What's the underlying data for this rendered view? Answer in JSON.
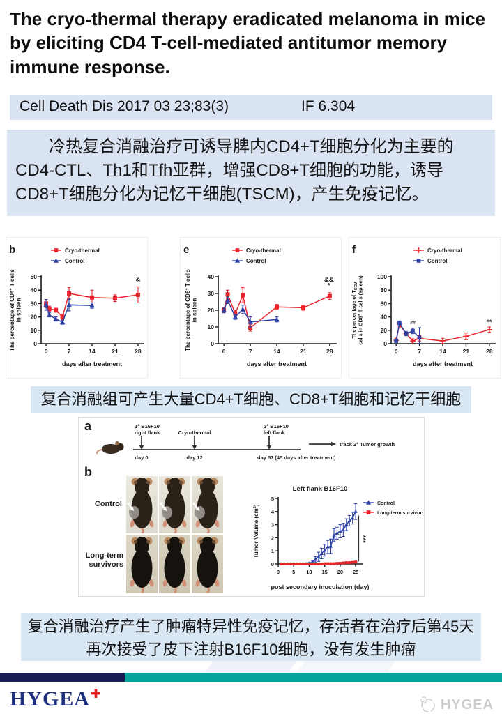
{
  "header": {
    "title": "The cryo-thermal therapy eradicated melanoma in mice by eliciting CD4 T-cell-mediated antitumor memory immune response.",
    "citation": "Cell Death Dis 2017 03 23;83(3)",
    "impact_factor": "IF 6.304"
  },
  "summary": {
    "text": "冷热复合消融治疗可诱导脾内CD4+T细胞分化为主要的CD4-CTL、Th1和Tfh亚群，增强CD8+T细胞的功能，诱导CD8+T细胞分化为记忆干细胞(TSCM)，产生免疫记忆。"
  },
  "captions": {
    "charts_caption": "复合消融组可产生大量CD4+T细胞、CD8+T细胞和记忆干细胞",
    "memory_caption_line1": "复合消融治疗产生了肿瘤特异性免疫记忆，存活者在治疗后第45天",
    "memory_caption_line2": "再次接受了皮下注射B16F10细胞，没有发生肿瘤"
  },
  "figure": {
    "panel_a_letter": "a",
    "panel_b_letter": "b",
    "timeline": {
      "inoculation1_line1": "1° B16F10",
      "inoculation1_line2": "right flank",
      "treatment": "Cryo-thermal",
      "inoculation2_line1": "2° B16F10",
      "inoculation2_line2": "left flank",
      "day0": "day 0",
      "day12": "day 12",
      "day57": "day 57",
      "day57_note": "(45 days after treatment)",
      "track": "track 2° Tumor growth"
    },
    "photo_rows": [
      {
        "label": "Control"
      },
      {
        "label": "Long-term survivors"
      }
    ]
  },
  "chart_data": [
    {
      "id": "cd4-spleen",
      "type": "line",
      "panel_letter": "b",
      "xlabel": "days after treatment",
      "ylabel_lines": [
        [
          {
            "t": "The percentage of CD4"
          },
          {
            "t": "+",
            "sup": true
          },
          {
            "t": " T cells"
          }
        ],
        [
          {
            "t": "in spleen"
          }
        ]
      ],
      "xlim": [
        -1.5,
        29.5
      ],
      "ylim": [
        0,
        50
      ],
      "xticks": [
        0,
        7,
        14,
        21,
        28
      ],
      "yticks": [
        0,
        10,
        20,
        30,
        40,
        50
      ],
      "series": [
        {
          "name": "Cryo-thermal",
          "color": "#e8252c",
          "marker": "square",
          "x": [
            0,
            1,
            3,
            5,
            7,
            14,
            21,
            28
          ],
          "y": [
            30,
            26,
            25,
            20,
            37.5,
            34.5,
            34,
            36.5
          ],
          "err": [
            3,
            2,
            1.5,
            2,
            4.5,
            5.5,
            2.5,
            6
          ]
        },
        {
          "name": "Control",
          "color": "#2f42a5",
          "marker": "triangle",
          "x": [
            0,
            1,
            3,
            5,
            7,
            14
          ],
          "y": [
            29,
            21.5,
            18.5,
            16,
            29,
            28.5
          ],
          "err": [
            4,
            1.5,
            1.5,
            1.5,
            4.5,
            2
          ]
        }
      ],
      "annotations": [
        {
          "text": "&",
          "x": 28,
          "y": 46.5
        }
      ]
    },
    {
      "id": "cd8-spleen",
      "type": "line",
      "panel_letter": "e",
      "xlabel": "days after treatment",
      "ylabel_lines": [
        [
          {
            "t": "The percentage of CD8"
          },
          {
            "t": "+",
            "sup": true
          },
          {
            "t": " T cells"
          }
        ],
        [
          {
            "t": "in spleen"
          }
        ]
      ],
      "xlim": [
        -1.5,
        29.5
      ],
      "ylim": [
        0,
        40
      ],
      "xticks": [
        0,
        7,
        14,
        21,
        28
      ],
      "yticks": [
        0,
        10,
        20,
        30,
        40
      ],
      "series": [
        {
          "name": "Cryo-thermal",
          "color": "#e8252c",
          "marker": "square",
          "x": [
            0,
            1,
            3,
            5,
            7,
            14,
            21,
            28
          ],
          "y": [
            20,
            29.5,
            18,
            29,
            9.5,
            22,
            21.5,
            28.5
          ],
          "err": [
            1.5,
            2.5,
            2,
            4.5,
            2,
            1.5,
            1.5,
            2
          ]
        },
        {
          "name": "Control",
          "color": "#2f42a5",
          "marker": "triangle",
          "x": [
            0,
            1,
            3,
            5,
            7,
            14
          ],
          "y": [
            20,
            26,
            16,
            20.5,
            13,
            14.5
          ],
          "err": [
            1.5,
            2,
            1.5,
            2.5,
            3,
            1.5
          ]
        }
      ],
      "annotations": [
        {
          "text": "&&",
          "x": 27.8,
          "y": 37
        },
        {
          "text": "*",
          "x": 27.8,
          "y": 33.5
        }
      ]
    },
    {
      "id": "tscm-cd8-spleen",
      "type": "line",
      "panel_letter": "f",
      "xlabel": "days after treatment",
      "ylabel_lines": [
        [
          {
            "t": "The percentage of T"
          },
          {
            "t": "SCM",
            "sub": true
          }
        ],
        [
          {
            "t": "cells in CD8"
          },
          {
            "t": "+",
            "sup": true
          },
          {
            "t": " T cells (spleen)"
          }
        ]
      ],
      "xlim": [
        -1.5,
        29.5
      ],
      "ylim": [
        0,
        100
      ],
      "xticks": [
        0,
        7,
        14,
        21,
        28
      ],
      "yticks": [
        0,
        20,
        40,
        60,
        80,
        100
      ],
      "series": [
        {
          "name": "Cryo-thermal",
          "color": "#e8252c",
          "marker": "plus",
          "x": [
            0,
            1,
            3,
            5,
            7,
            14,
            21,
            28
          ],
          "y": [
            5,
            29,
            15,
            4,
            8,
            4,
            11,
            21
          ],
          "err": [
            3,
            4,
            3,
            3,
            4,
            4,
            5,
            4
          ]
        },
        {
          "name": "Control",
          "color": "#2f42a5",
          "marker": "square",
          "x": [
            0,
            1,
            3,
            5,
            7
          ],
          "y": [
            4,
            31,
            15,
            19,
            9
          ],
          "err": [
            2,
            3,
            3,
            4,
            15
          ]
        }
      ],
      "annotations": [
        {
          "text": "##",
          "x": 5,
          "y": 29,
          "size": 7
        },
        {
          "text": "**",
          "x": 28,
          "y": 29
        }
      ]
    },
    {
      "id": "tumor-growth",
      "type": "line",
      "title": "Left flank B16F10",
      "xlabel": "post secondary inoculation (day)",
      "ylabel_lines": [
        [
          {
            "t": "Tumor Volume (cm"
          },
          {
            "t": "3",
            "sup": true
          },
          {
            "t": ")"
          }
        ]
      ],
      "xlim": [
        0,
        27
      ],
      "ylim": [
        0,
        5
      ],
      "xticks": [
        0,
        5,
        10,
        15,
        20,
        25
      ],
      "yticks": [
        0,
        1,
        2,
        3,
        4,
        5
      ],
      "series": [
        {
          "name": "Control",
          "color": "#2f42a5",
          "marker": "triangle",
          "x": [
            1,
            2,
            3,
            4,
            5,
            6,
            7,
            8,
            9,
            10,
            11,
            12,
            13,
            14,
            15,
            16,
            17,
            18,
            19,
            20,
            21,
            22,
            23,
            24,
            25
          ],
          "y": [
            0,
            0,
            0,
            0,
            0,
            0,
            0,
            0,
            0.02,
            0.05,
            0.15,
            0.35,
            0.55,
            0.8,
            1.05,
            1.3,
            1.35,
            2.2,
            2.35,
            2.5,
            2.6,
            3.0,
            3.3,
            3.5,
            4.0
          ],
          "err": [
            0.02,
            0.02,
            0.02,
            0.02,
            0.02,
            0.02,
            0.02,
            0.02,
            0.03,
            0.05,
            0.12,
            0.2,
            0.35,
            0.4,
            0.45,
            0.5,
            0.55,
            0.5,
            0.45,
            0.5,
            0.5,
            0.45,
            0.4,
            0.45,
            0.6
          ]
        },
        {
          "name": "Long-term survivors",
          "color": "#e8252c",
          "marker": "square",
          "x": [
            1,
            2,
            3,
            4,
            5,
            6,
            7,
            8,
            9,
            10,
            11,
            12,
            13,
            14,
            15,
            16,
            17,
            18,
            19,
            20,
            21,
            22,
            23,
            24,
            25
          ],
          "y": [
            0,
            0,
            0,
            0,
            0,
            0,
            0,
            0,
            0,
            0,
            0,
            0,
            0,
            0,
            0.02,
            0.02,
            0.02,
            0.02,
            0.05,
            0.05,
            0.08,
            0.1,
            0.1,
            0.12,
            0.15
          ],
          "err": [
            0.02,
            0.02,
            0.02,
            0.02,
            0.02,
            0.02,
            0.02,
            0.02,
            0.02,
            0.02,
            0.02,
            0.02,
            0.02,
            0.02,
            0.02,
            0.02,
            0.02,
            0.02,
            0.02,
            0.02,
            0.02,
            0.03,
            0.03,
            0.03,
            0.04
          ]
        }
      ],
      "annotations": [
        {
          "text": "***",
          "x": 26.8,
          "y": 1.9,
          "rotate": 90
        }
      ],
      "lines": [
        {
          "x": 26,
          "y1": 0.2,
          "y2": 3.7
        }
      ]
    }
  ],
  "colors": {
    "accent_red": "#e8252c",
    "accent_blue": "#2f42a5",
    "panel_blue_bg": "#dae3f1",
    "caption_blue_bg": "#d9e6f4",
    "bar_navy": "#181a54",
    "bar_teal": "#04a39c",
    "logo_navy": "#1e2f7e",
    "logo_cross_red": "#e02020",
    "watermark_gray": "#cdcdcd"
  },
  "footer": {
    "logo_text": "HYGEA",
    "logo_cross_icon": "red-cross",
    "watermark_icon": "hygea-emblem",
    "watermark_text": "HYGEA"
  }
}
